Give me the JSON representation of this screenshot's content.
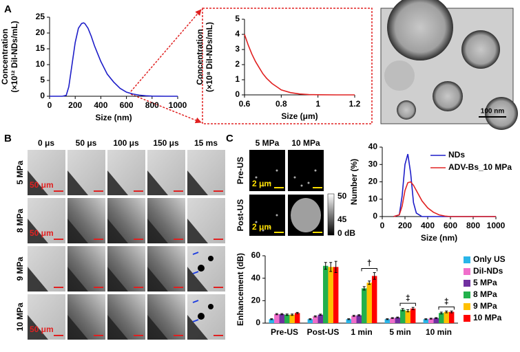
{
  "panel_labels": [
    "A",
    "B",
    "C"
  ],
  "tem_image": {
    "scale_bar": "100 nm"
  },
  "ultrasound_frames": {
    "columns": [
      "0 μs",
      "50 μs",
      "100 μs",
      "150 μs",
      "15 ms"
    ],
    "rows": [
      "5 MPa",
      "8 MPa",
      "9 MPa",
      "10 MPa"
    ],
    "scale_bars": [
      "50 μm",
      "50 μm",
      "50 μm"
    ]
  },
  "contrast_images": {
    "columns": [
      "5 MPa",
      "10 MPa"
    ],
    "rows": [
      "Pre-US",
      "Post-US"
    ],
    "scale_bars": [
      "2 μm",
      "2 μm"
    ],
    "colorbar_labels": [
      "50",
      "45",
      "0 dB"
    ]
  },
  "chart_data": [
    {
      "type": "line",
      "xlabel": "Size (nm)",
      "ylabel": [
        "Concentration",
        "(×10¹² DiI-NDs/mL)"
      ],
      "x": [
        0,
        50,
        100,
        130,
        150,
        175,
        200,
        225,
        250,
        265,
        275,
        300,
        325,
        350,
        375,
        400,
        450,
        500,
        550,
        600,
        650,
        700,
        750,
        800,
        900,
        1000
      ],
      "values": [
        0,
        0,
        0,
        0.3,
        3,
        10,
        17,
        21.5,
        23,
        23.2,
        23,
        21.5,
        19,
        16,
        13.5,
        11,
        7,
        4.5,
        2.5,
        1.3,
        0.7,
        0.35,
        0.15,
        0.05,
        0,
        0
      ],
      "color": "#1c1cc8",
      "xlim": [
        0,
        1000
      ],
      "xticks": [
        0,
        200,
        400,
        600,
        800,
        1000
      ],
      "ylim": [
        0,
        25
      ],
      "yticks": [
        0,
        5,
        10,
        15,
        20,
        25
      ]
    },
    {
      "type": "line",
      "xlabel": "Size (μm)",
      "ylabel": [
        "Concentration",
        "(×10⁸ DiI-NDs/mL)"
      ],
      "x": [
        0.6,
        0.62,
        0.64,
        0.66,
        0.68,
        0.7,
        0.72,
        0.75,
        0.78,
        0.8,
        0.85,
        0.9,
        0.95,
        1,
        1.1,
        1.2
      ],
      "values": [
        4,
        3.3,
        2.7,
        2.2,
        1.8,
        1.4,
        1.1,
        0.75,
        0.5,
        0.33,
        0.15,
        0.06,
        0.02,
        0.01,
        0,
        0
      ],
      "color": "#e02020",
      "xlim": [
        0.6,
        1.2
      ],
      "xticks": [
        0.6,
        0.8,
        1,
        1.2
      ],
      "ylim": [
        0,
        5
      ],
      "yticks": [
        0,
        1,
        2,
        3,
        4,
        5
      ]
    },
    {
      "type": "line",
      "xlabel": "Size (nm)",
      "ylabel": [
        "Number (%)"
      ],
      "x": [
        100,
        150,
        175,
        200,
        225,
        250,
        275,
        300,
        350,
        400,
        450,
        500,
        550,
        600,
        700,
        800,
        1000
      ],
      "series": [
        {
          "name": "NDs",
          "color": "#1c1cc8",
          "values": [
            0,
            1,
            12,
            30,
            36,
            25,
            8,
            2,
            0,
            0,
            0,
            0,
            0,
            0,
            0,
            0,
            0
          ]
        },
        {
          "name": "ADV-Bs_10 MPa",
          "color": "#e02020",
          "values": [
            0,
            1,
            6,
            15,
            19.5,
            20,
            18,
            15,
            9,
            5,
            2.5,
            1,
            0.3,
            0,
            0,
            0,
            0
          ]
        }
      ],
      "xlim": [
        0,
        1000
      ],
      "xticks": [
        0,
        200,
        400,
        600,
        800,
        1000
      ],
      "ylim": [
        0,
        40
      ],
      "yticks": [
        0,
        10,
        20,
        30,
        40
      ],
      "legend": "upper right"
    },
    {
      "type": "bar",
      "ylabel": [
        "Enhancement (dB)"
      ],
      "categories": [
        "Pre-US",
        "Post-US",
        "1 min",
        "5 min",
        "10 min"
      ],
      "series": [
        {
          "name": "Only US",
          "color": "#29b5e8",
          "values": [
            3.5,
            3.5,
            3.5,
            3.5,
            3.5
          ],
          "errors": [
            0.4,
            0.4,
            0.4,
            0.4,
            0.4
          ]
        },
        {
          "name": "DiI-NDs",
          "color": "#f06ecb",
          "values": [
            8,
            6,
            6.5,
            4.5,
            4
          ],
          "errors": [
            0.5,
            0.5,
            0.5,
            0.4,
            0.4
          ]
        },
        {
          "name": "5 MPa",
          "color": "#7030a0",
          "values": [
            8,
            7.5,
            7,
            5,
            4.5
          ],
          "errors": [
            0.5,
            0.5,
            0.5,
            0.4,
            0.4
          ]
        },
        {
          "name": "8 MPa",
          "color": "#22b14c",
          "values": [
            7.5,
            51,
            31,
            12,
            9
          ],
          "errors": [
            0.6,
            3,
            1.5,
            1,
            0.8
          ]
        },
        {
          "name": "9 MPa",
          "color": "#ffc000",
          "values": [
            7.5,
            50,
            36,
            11,
            10
          ],
          "errors": [
            0.6,
            4,
            1.5,
            1,
            0.8
          ]
        },
        {
          "name": "10 MPa",
          "color": "#ff0000",
          "values": [
            9,
            50,
            42,
            13,
            10
          ],
          "errors": [
            0.6,
            5,
            3,
            1,
            0.8
          ]
        }
      ],
      "annotations": [
        {
          "text": "†",
          "category": "1 min"
        },
        {
          "text": "‡",
          "category": "5 min"
        },
        {
          "text": "‡",
          "category": "10 min"
        }
      ],
      "ylim": [
        0,
        60
      ],
      "yticks": [
        0,
        20,
        40,
        60
      ],
      "legend": "right"
    }
  ]
}
